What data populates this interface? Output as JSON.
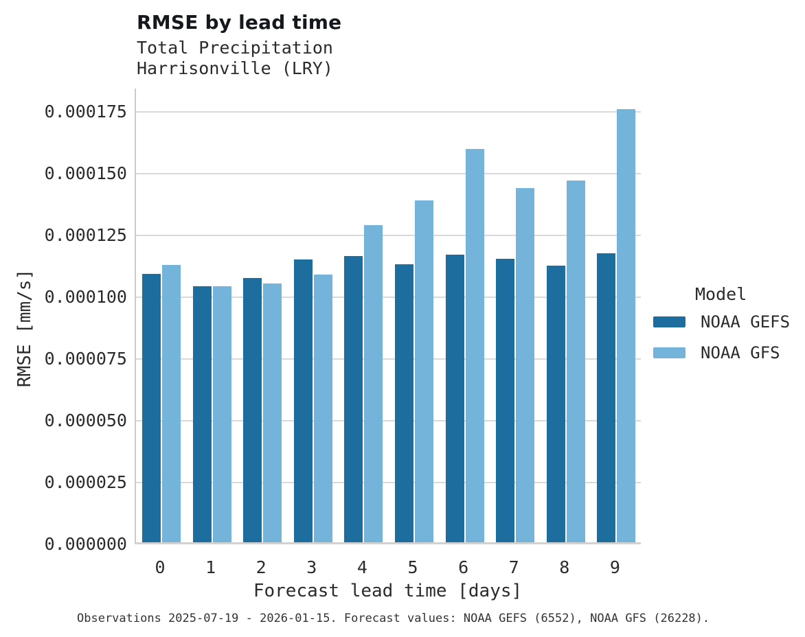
{
  "header": {
    "title": "RMSE by lead time",
    "subtitle_line1": "Total Precipitation",
    "subtitle_line2": "Harrisonville (LRY)"
  },
  "chart_data": {
    "type": "bar",
    "title": "RMSE by lead time",
    "subtitle": [
      "Total Precipitation",
      "Harrisonville (LRY)"
    ],
    "xlabel": "Forecast lead time [days]",
    "ylabel": "RMSE [mm/s]",
    "categories": [
      "0",
      "1",
      "2",
      "3",
      "4",
      "5",
      "6",
      "7",
      "8",
      "9"
    ],
    "series": [
      {
        "name": "NOAA GEFS",
        "color": "#1d6e9e",
        "values": [
          0.0001085,
          0.0001035,
          0.000107,
          0.0001145,
          0.0001158,
          0.0001126,
          0.0001165,
          0.0001147,
          0.0001119,
          0.0001169
        ]
      },
      {
        "name": "NOAA GFS",
        "color": "#74b3da",
        "values": [
          0.0001122,
          0.0001035,
          0.0001047,
          0.0001082,
          0.0001283,
          0.0001383,
          0.0001592,
          0.0001434,
          0.0001463,
          0.0001753
        ]
      }
    ],
    "ylim": [
      0,
      0.0001845
    ],
    "y_ticks": [
      0,
      2.5e-05,
      5e-05,
      7.5e-05,
      0.0001,
      0.000125,
      0.00015,
      0.000175
    ],
    "y_tick_labels": [
      "0.000000",
      "0.000025",
      "0.000050",
      "0.000075",
      "0.000100",
      "0.000125",
      "0.000150",
      "0.000175"
    ],
    "grid": "horizontal",
    "legend_title": "Model",
    "legend_position": "right"
  },
  "footer": {
    "note": "Observations 2025-07-19 - 2026-01-15. Forecast values: NOAA GEFS (6552), NOAA GFS (26228)."
  },
  "colors": {
    "gefs": "#1d6e9e",
    "gfs": "#74b3da",
    "gridline": "#d9d9d9",
    "axis": "#cccccc"
  }
}
